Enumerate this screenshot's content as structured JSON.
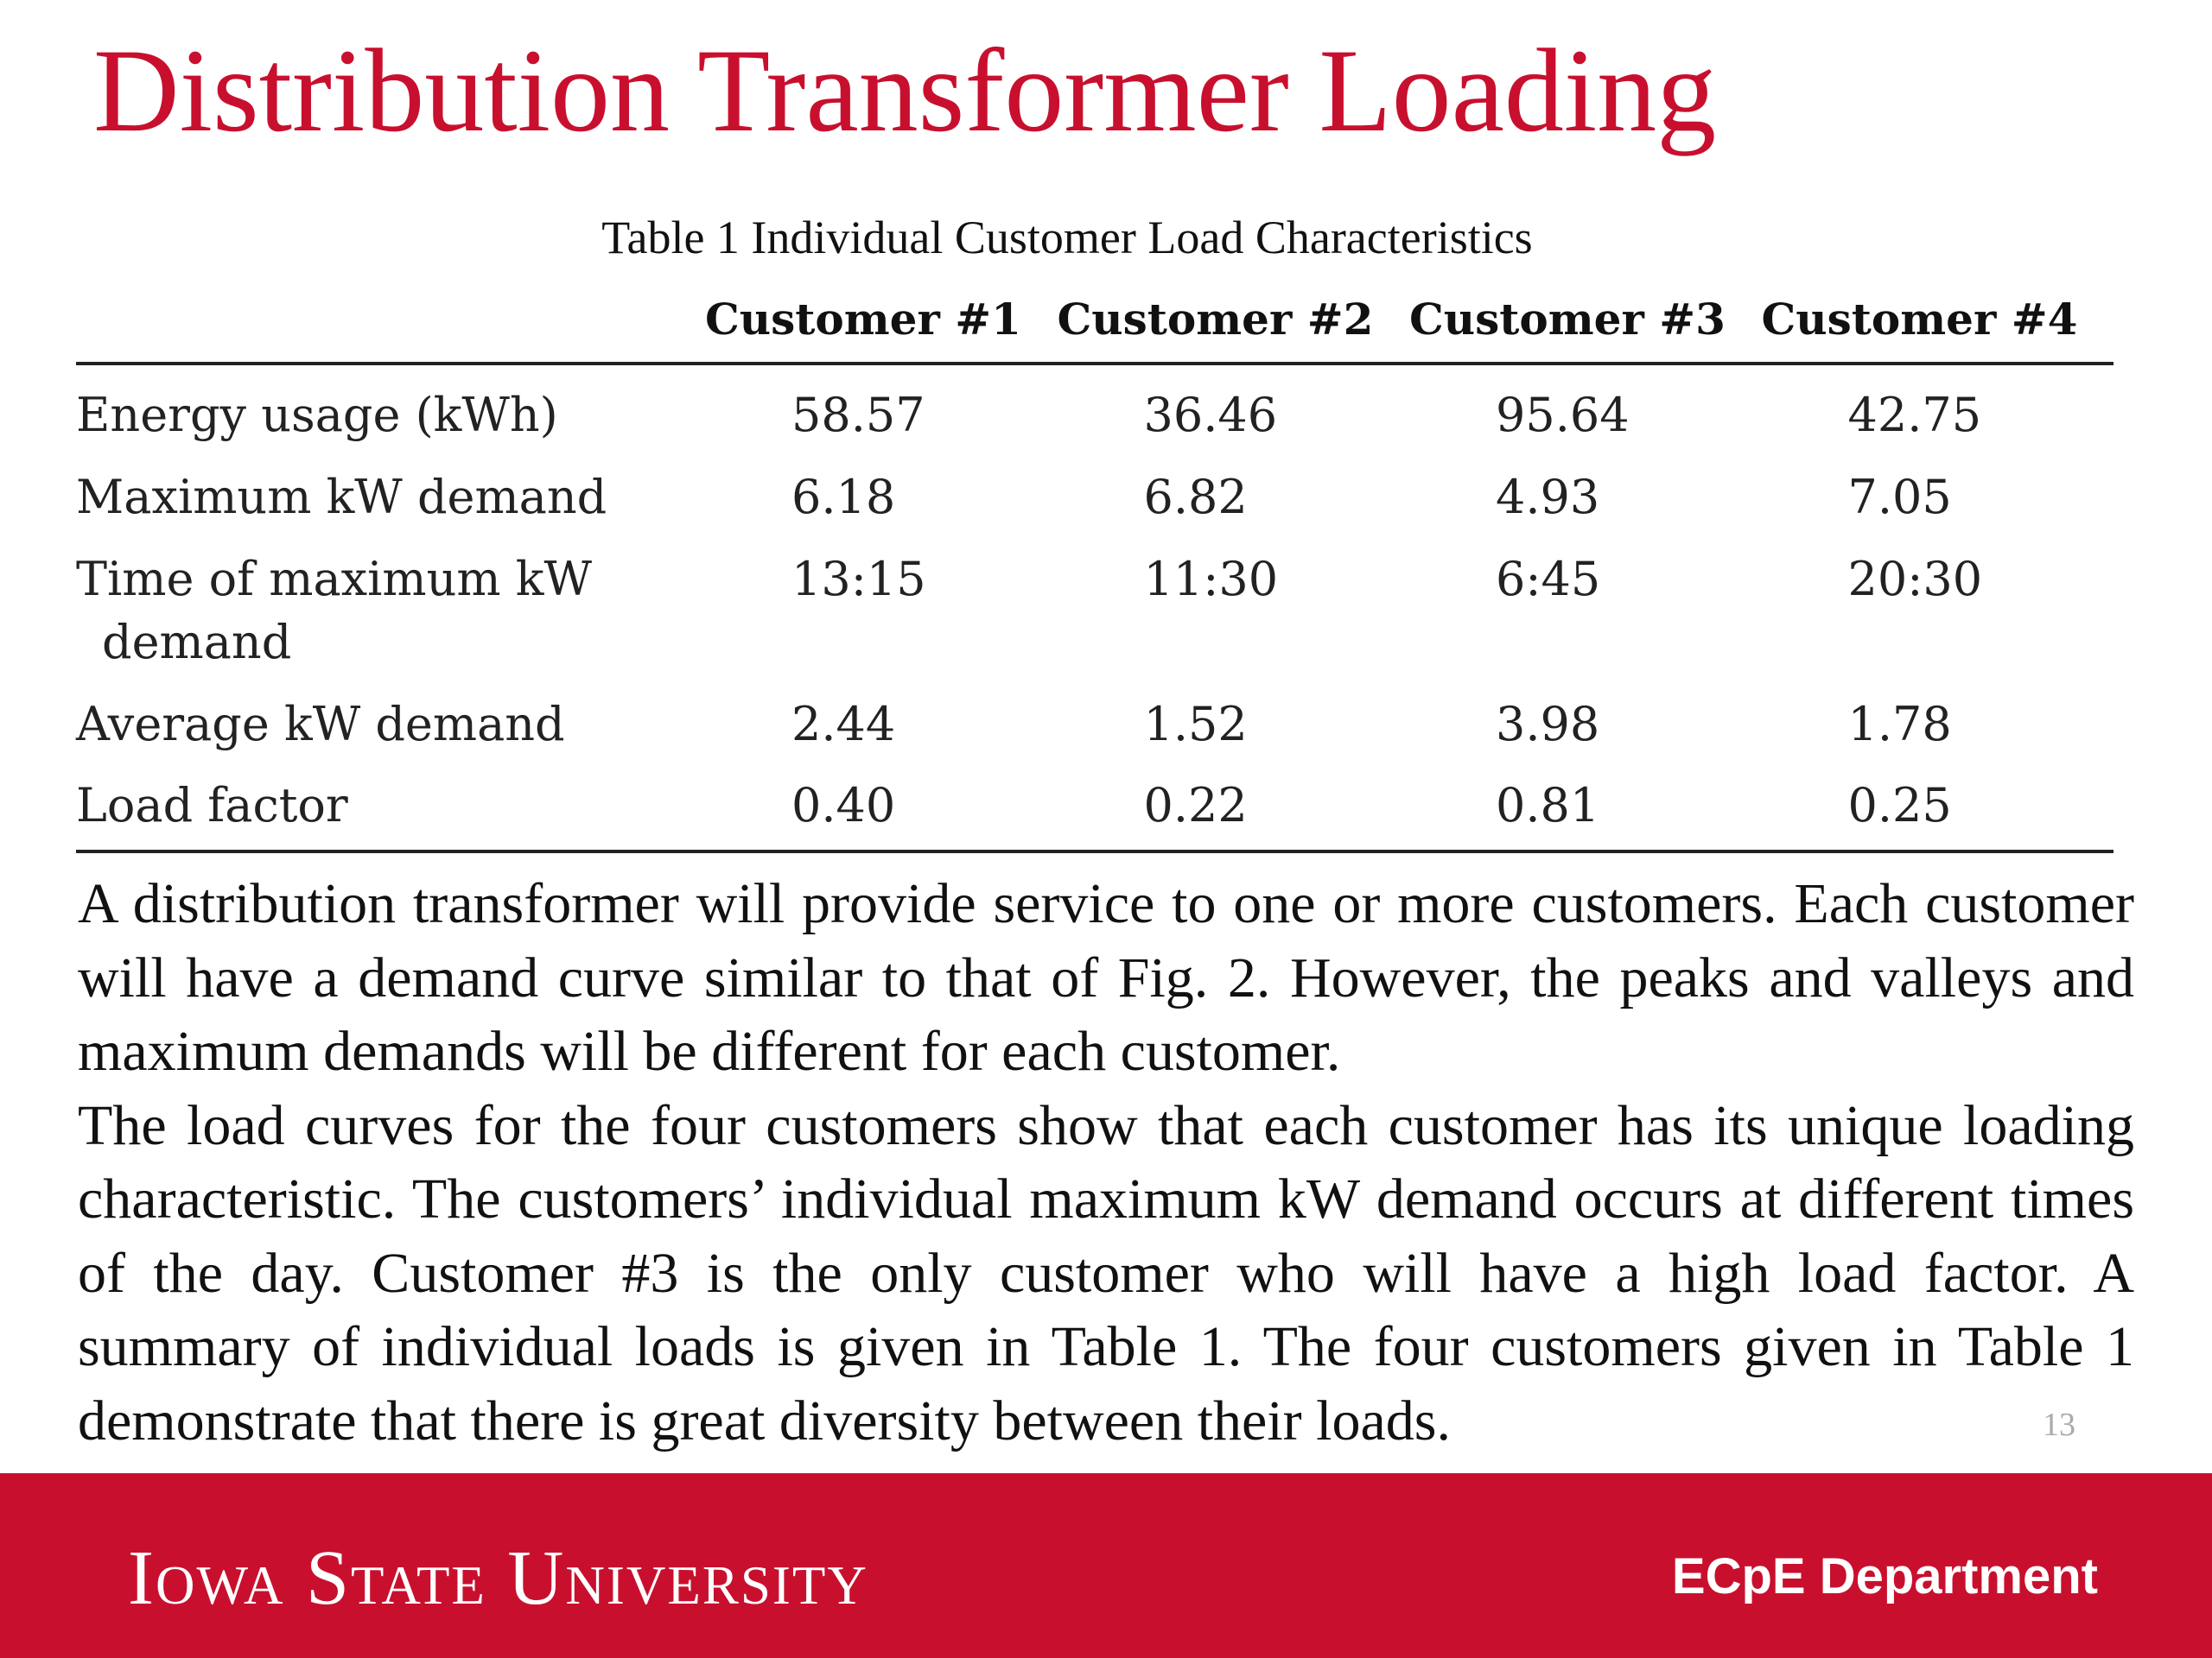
{
  "slide": {
    "title": "Distribution Transformer Loading",
    "page_number": "13"
  },
  "table": {
    "caption": "Table 1 Individual Customer Load Characteristics",
    "headers": [
      "",
      "Customer #1",
      "Customer #2",
      "Customer #3",
      "Customer #4"
    ],
    "rows": [
      {
        "label": "Energy usage (kWh)",
        "label_cont": "",
        "values": [
          "58.57",
          "36.46",
          "95.64",
          "42.75"
        ]
      },
      {
        "label": "Maximum kW demand",
        "label_cont": "",
        "values": [
          "6.18",
          "6.82",
          "4.93",
          "7.05"
        ]
      },
      {
        "label": "Time of maximum kW",
        "label_cont": "demand",
        "values": [
          "13:15",
          "11:30",
          "6:45",
          "20:30"
        ]
      },
      {
        "label": "Average kW demand",
        "label_cont": "",
        "values": [
          "2.44",
          "1.52",
          "3.98",
          "1.78"
        ]
      },
      {
        "label": "Load factor",
        "label_cont": "",
        "values": [
          "0.40",
          "0.22",
          "0.81",
          "0.25"
        ]
      }
    ]
  },
  "body": {
    "paragraphs": [
      "A distribution transformer will provide service to one or more customers. Each customer will have a demand curve similar to that of Fig. 2. However, the peaks and valleys and maximum demands will be different for each customer.",
      "The load curves for the four customers show that each customer has its unique loading characteristic. The customers’ individual maximum kW demand occurs at different times of the day. Customer #3 is the only customer who will have a high load factor. A summary of individual loads is given in Table 1. The four customers given in Table 1 demonstrate that there is great diversity between their loads."
    ]
  },
  "footer": {
    "logo_text": "Iowa State University",
    "department": "ECpE Department"
  },
  "colors": {
    "accent": "#c8102e",
    "footer_text": "#ffffff"
  }
}
